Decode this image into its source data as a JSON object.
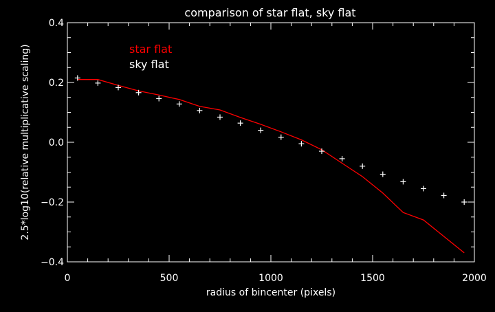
{
  "chart_data": {
    "type": "line",
    "title": "comparison of star flat, sky flat",
    "xlabel": "radius of bincenter (pixels)",
    "ylabel": "2.5*log10(relative multiplicative scaling)",
    "xlim": [
      0,
      2000
    ],
    "ylim": [
      -0.4,
      0.4
    ],
    "xticks": [
      0,
      500,
      1000,
      1500,
      2000
    ],
    "xtick_labels": [
      "0",
      "500",
      "1000",
      "1500",
      "2000"
    ],
    "yticks": [
      -0.4,
      -0.2,
      0.0,
      0.2,
      0.4
    ],
    "ytick_labels": [
      "−0.4",
      "−0.2",
      "0.0",
      "0.2",
      "0.4"
    ],
    "grid": false,
    "legend": "top-left",
    "background": "#000000",
    "axis_color": "#ffffff",
    "series": [
      {
        "name": "star flat",
        "type": "line",
        "color": "#ff0000",
        "x": [
          50,
          150,
          250,
          350,
          450,
          550,
          650,
          750,
          850,
          950,
          1050,
          1150,
          1250,
          1350,
          1450,
          1550,
          1650,
          1750,
          1850,
          1950
        ],
        "y": [
          0.21,
          0.21,
          0.19,
          0.172,
          0.158,
          0.143,
          0.12,
          0.108,
          0.083,
          0.06,
          0.035,
          0.008,
          -0.025,
          -0.07,
          -0.115,
          -0.17,
          -0.235,
          -0.26,
          -0.315,
          -0.37
        ]
      },
      {
        "name": "sky flat",
        "type": "scatter",
        "marker": "plus",
        "color": "#ffffff",
        "x": [
          50,
          150,
          250,
          350,
          450,
          550,
          650,
          750,
          850,
          950,
          1050,
          1150,
          1250,
          1350,
          1450,
          1550,
          1650,
          1750,
          1850,
          1950
        ],
        "y": [
          0.215,
          0.198,
          0.183,
          0.166,
          0.146,
          0.128,
          0.106,
          0.084,
          0.064,
          0.04,
          0.017,
          -0.005,
          -0.03,
          -0.055,
          -0.08,
          -0.107,
          -0.132,
          -0.155,
          -0.178,
          -0.2
        ]
      }
    ]
  }
}
